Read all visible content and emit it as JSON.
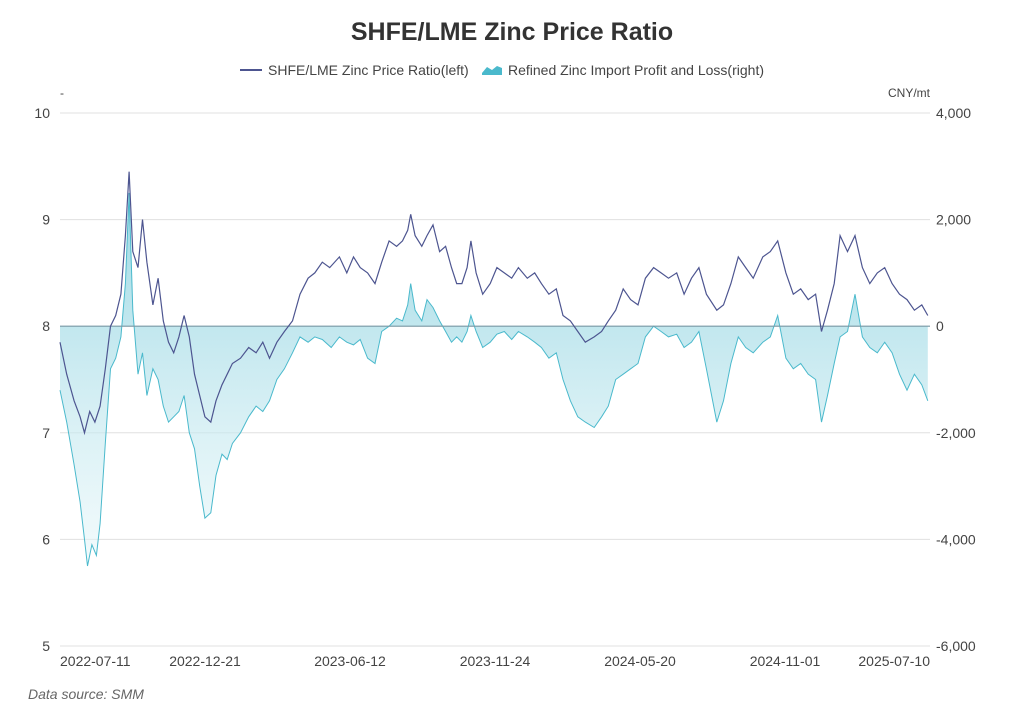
{
  "title": "SHFE/LME Zinc Price Ratio",
  "left_unit": "-",
  "right_unit": "CNY/mt",
  "data_source": "Data source:  SMM",
  "colors": {
    "ratio_line": "#4d5590",
    "profit_line": "#4ab9cc",
    "profit_fill_top": "#8fd3e0",
    "profit_fill_bottom": "#e6f6f9",
    "grid": "#e0e0e0",
    "zero_line": "#7a9aa6"
  },
  "chart_data": {
    "type": "line",
    "title": "SHFE/LME Zinc Price Ratio",
    "x_type": "date",
    "x_range": [
      "2022-06-01",
      "2025-08-15"
    ],
    "x_tick_labels": [
      "2022-07-11",
      "2022-12-21",
      "2023-06-12",
      "2023-11-24",
      "2024-05-20",
      "2024-11-01",
      "2025-07-10"
    ],
    "y_left": {
      "label": "-",
      "range": [
        5,
        10
      ],
      "ticks": [
        "5",
        "6",
        "7",
        "8",
        "9",
        "10"
      ]
    },
    "y_right": {
      "label": "CNY/mt",
      "range": [
        -6000,
        4000
      ],
      "ticks": [
        "-6,000",
        "-4,000",
        "-2,000",
        "0",
        "2,000",
        "4,000"
      ]
    },
    "grid": true,
    "legend_position": "top-center",
    "series": [
      {
        "name": "SHFE/LME Zinc Price Ratio(left)",
        "axis": "left",
        "style": "line",
        "points": [
          [
            "2022-06-01",
            7.85
          ],
          [
            "2022-06-10",
            7.55
          ],
          [
            "2022-06-20",
            7.3
          ],
          [
            "2022-06-28",
            7.15
          ],
          [
            "2022-07-04",
            7.0
          ],
          [
            "2022-07-11",
            7.2
          ],
          [
            "2022-07-18",
            7.1
          ],
          [
            "2022-07-25",
            7.25
          ],
          [
            "2022-08-01",
            7.6
          ],
          [
            "2022-08-08",
            8.0
          ],
          [
            "2022-08-15",
            8.1
          ],
          [
            "2022-08-22",
            8.3
          ],
          [
            "2022-08-28",
            8.85
          ],
          [
            "2022-09-02",
            9.45
          ],
          [
            "2022-09-07",
            8.7
          ],
          [
            "2022-09-14",
            8.55
          ],
          [
            "2022-09-20",
            9.0
          ],
          [
            "2022-09-26",
            8.6
          ],
          [
            "2022-10-04",
            8.2
          ],
          [
            "2022-10-11",
            8.45
          ],
          [
            "2022-10-18",
            8.05
          ],
          [
            "2022-10-25",
            7.85
          ],
          [
            "2022-11-01",
            7.75
          ],
          [
            "2022-11-08",
            7.9
          ],
          [
            "2022-11-15",
            8.1
          ],
          [
            "2022-11-22",
            7.9
          ],
          [
            "2022-11-29",
            7.55
          ],
          [
            "2022-12-06",
            7.35
          ],
          [
            "2022-12-13",
            7.15
          ],
          [
            "2022-12-21",
            7.1
          ],
          [
            "2022-12-28",
            7.3
          ],
          [
            "2023-01-05",
            7.45
          ],
          [
            "2023-01-12",
            7.55
          ],
          [
            "2023-01-19",
            7.65
          ],
          [
            "2023-01-30",
            7.7
          ],
          [
            "2023-02-10",
            7.8
          ],
          [
            "2023-02-20",
            7.75
          ],
          [
            "2023-03-01",
            7.85
          ],
          [
            "2023-03-10",
            7.7
          ],
          [
            "2023-03-20",
            7.85
          ],
          [
            "2023-03-30",
            7.95
          ],
          [
            "2023-04-10",
            8.05
          ],
          [
            "2023-04-20",
            8.3
          ],
          [
            "2023-05-01",
            8.45
          ],
          [
            "2023-05-10",
            8.5
          ],
          [
            "2023-05-20",
            8.6
          ],
          [
            "2023-05-30",
            8.55
          ],
          [
            "2023-06-12",
            8.65
          ],
          [
            "2023-06-22",
            8.5
          ],
          [
            "2023-07-01",
            8.65
          ],
          [
            "2023-07-10",
            8.55
          ],
          [
            "2023-07-20",
            8.5
          ],
          [
            "2023-07-30",
            8.4
          ],
          [
            "2023-08-08",
            8.6
          ],
          [
            "2023-08-18",
            8.8
          ],
          [
            "2023-08-28",
            8.75
          ],
          [
            "2023-09-05",
            8.8
          ],
          [
            "2023-09-12",
            8.9
          ],
          [
            "2023-09-16",
            9.05
          ],
          [
            "2023-09-22",
            8.85
          ],
          [
            "2023-10-01",
            8.75
          ],
          [
            "2023-10-08",
            8.85
          ],
          [
            "2023-10-16",
            8.95
          ],
          [
            "2023-10-25",
            8.7
          ],
          [
            "2023-11-02",
            8.75
          ],
          [
            "2023-11-10",
            8.55
          ],
          [
            "2023-11-17",
            8.4
          ],
          [
            "2023-11-24",
            8.4
          ],
          [
            "2023-12-01",
            8.55
          ],
          [
            "2023-12-06",
            8.8
          ],
          [
            "2023-12-13",
            8.5
          ],
          [
            "2023-12-22",
            8.3
          ],
          [
            "2024-01-01",
            8.4
          ],
          [
            "2024-01-10",
            8.55
          ],
          [
            "2024-01-20",
            8.5
          ],
          [
            "2024-01-30",
            8.45
          ],
          [
            "2024-02-08",
            8.55
          ],
          [
            "2024-02-20",
            8.45
          ],
          [
            "2024-03-01",
            8.5
          ],
          [
            "2024-03-10",
            8.4
          ],
          [
            "2024-03-20",
            8.3
          ],
          [
            "2024-03-30",
            8.35
          ],
          [
            "2024-04-08",
            8.1
          ],
          [
            "2024-04-18",
            8.05
          ],
          [
            "2024-04-28",
            7.95
          ],
          [
            "2024-05-08",
            7.85
          ],
          [
            "2024-05-20",
            7.9
          ],
          [
            "2024-05-30",
            7.95
          ],
          [
            "2024-06-08",
            8.05
          ],
          [
            "2024-06-18",
            8.15
          ],
          [
            "2024-06-28",
            8.35
          ],
          [
            "2024-07-08",
            8.25
          ],
          [
            "2024-07-18",
            8.2
          ],
          [
            "2024-07-28",
            8.45
          ],
          [
            "2024-08-08",
            8.55
          ],
          [
            "2024-08-18",
            8.5
          ],
          [
            "2024-08-28",
            8.45
          ],
          [
            "2024-09-08",
            8.5
          ],
          [
            "2024-09-18",
            8.3
          ],
          [
            "2024-09-28",
            8.45
          ],
          [
            "2024-10-08",
            8.55
          ],
          [
            "2024-10-18",
            8.3
          ],
          [
            "2024-11-01",
            8.15
          ],
          [
            "2024-11-10",
            8.2
          ],
          [
            "2024-11-20",
            8.4
          ],
          [
            "2024-11-30",
            8.65
          ],
          [
            "2024-12-10",
            8.55
          ],
          [
            "2024-12-20",
            8.45
          ],
          [
            "2025-01-02",
            8.65
          ],
          [
            "2025-01-12",
            8.7
          ],
          [
            "2025-01-22",
            8.8
          ],
          [
            "2025-02-02",
            8.5
          ],
          [
            "2025-02-12",
            8.3
          ],
          [
            "2025-02-22",
            8.35
          ],
          [
            "2025-03-04",
            8.25
          ],
          [
            "2025-03-14",
            8.3
          ],
          [
            "2025-03-22",
            7.95
          ],
          [
            "2025-03-30",
            8.15
          ],
          [
            "2025-04-08",
            8.4
          ],
          [
            "2025-04-16",
            8.85
          ],
          [
            "2025-04-26",
            8.7
          ],
          [
            "2025-05-06",
            8.85
          ],
          [
            "2025-05-16",
            8.55
          ],
          [
            "2025-05-26",
            8.4
          ],
          [
            "2025-06-05",
            8.5
          ],
          [
            "2025-06-15",
            8.55
          ],
          [
            "2025-06-25",
            8.4
          ],
          [
            "2025-07-05",
            8.3
          ],
          [
            "2025-07-15",
            8.25
          ],
          [
            "2025-07-25",
            8.15
          ],
          [
            "2025-08-04",
            8.2
          ],
          [
            "2025-08-12",
            8.1
          ]
        ]
      },
      {
        "name": "Refined Zinc Import Profit and Loss(right)",
        "axis": "right",
        "style": "area",
        "points": [
          [
            "2022-06-01",
            -1200
          ],
          [
            "2022-06-10",
            -1800
          ],
          [
            "2022-06-20",
            -2600
          ],
          [
            "2022-06-28",
            -3300
          ],
          [
            "2022-07-04",
            -4000
          ],
          [
            "2022-07-08",
            -4500
          ],
          [
            "2022-07-14",
            -4100
          ],
          [
            "2022-07-20",
            -4300
          ],
          [
            "2022-07-25",
            -3700
          ],
          [
            "2022-08-01",
            -2200
          ],
          [
            "2022-08-08",
            -800
          ],
          [
            "2022-08-15",
            -600
          ],
          [
            "2022-08-22",
            -200
          ],
          [
            "2022-08-28",
            800
          ],
          [
            "2022-09-02",
            2500
          ],
          [
            "2022-09-07",
            300
          ],
          [
            "2022-09-14",
            -900
          ],
          [
            "2022-09-20",
            -500
          ],
          [
            "2022-09-26",
            -1300
          ],
          [
            "2022-10-04",
            -800
          ],
          [
            "2022-10-11",
            -1000
          ],
          [
            "2022-10-18",
            -1500
          ],
          [
            "2022-10-25",
            -1800
          ],
          [
            "2022-11-01",
            -1700
          ],
          [
            "2022-11-08",
            -1600
          ],
          [
            "2022-11-15",
            -1300
          ],
          [
            "2022-11-22",
            -2000
          ],
          [
            "2022-11-29",
            -2300
          ],
          [
            "2022-12-06",
            -3000
          ],
          [
            "2022-12-13",
            -3600
          ],
          [
            "2022-12-21",
            -3500
          ],
          [
            "2022-12-28",
            -2800
          ],
          [
            "2023-01-05",
            -2400
          ],
          [
            "2023-01-12",
            -2500
          ],
          [
            "2023-01-19",
            -2200
          ],
          [
            "2023-01-30",
            -2000
          ],
          [
            "2023-02-10",
            -1700
          ],
          [
            "2023-02-20",
            -1500
          ],
          [
            "2023-03-01",
            -1600
          ],
          [
            "2023-03-10",
            -1400
          ],
          [
            "2023-03-20",
            -1000
          ],
          [
            "2023-03-30",
            -800
          ],
          [
            "2023-04-10",
            -500
          ],
          [
            "2023-04-20",
            -200
          ],
          [
            "2023-05-01",
            -300
          ],
          [
            "2023-05-10",
            -200
          ],
          [
            "2023-05-20",
            -250
          ],
          [
            "2023-06-01",
            -400
          ],
          [
            "2023-06-12",
            -200
          ],
          [
            "2023-06-22",
            -300
          ],
          [
            "2023-07-01",
            -350
          ],
          [
            "2023-07-10",
            -250
          ],
          [
            "2023-07-20",
            -600
          ],
          [
            "2023-07-30",
            -700
          ],
          [
            "2023-08-08",
            -100
          ],
          [
            "2023-08-18",
            0
          ],
          [
            "2023-08-28",
            150
          ],
          [
            "2023-09-05",
            100
          ],
          [
            "2023-09-12",
            400
          ],
          [
            "2023-09-16",
            800
          ],
          [
            "2023-09-22",
            300
          ],
          [
            "2023-10-01",
            100
          ],
          [
            "2023-10-08",
            500
          ],
          [
            "2023-10-16",
            350
          ],
          [
            "2023-10-25",
            100
          ],
          [
            "2023-11-02",
            -100
          ],
          [
            "2023-11-10",
            -300
          ],
          [
            "2023-11-17",
            -200
          ],
          [
            "2023-11-24",
            -300
          ],
          [
            "2023-12-01",
            -100
          ],
          [
            "2023-12-06",
            200
          ],
          [
            "2023-12-13",
            -100
          ],
          [
            "2023-12-22",
            -400
          ],
          [
            "2024-01-01",
            -300
          ],
          [
            "2024-01-10",
            -150
          ],
          [
            "2024-01-20",
            -100
          ],
          [
            "2024-01-30",
            -250
          ],
          [
            "2024-02-08",
            -100
          ],
          [
            "2024-02-20",
            -200
          ],
          [
            "2024-03-01",
            -300
          ],
          [
            "2024-03-10",
            -400
          ],
          [
            "2024-03-20",
            -600
          ],
          [
            "2024-03-30",
            -500
          ],
          [
            "2024-04-08",
            -1000
          ],
          [
            "2024-04-18",
            -1400
          ],
          [
            "2024-04-28",
            -1700
          ],
          [
            "2024-05-08",
            -1800
          ],
          [
            "2024-05-20",
            -1900
          ],
          [
            "2024-05-30",
            -1700
          ],
          [
            "2024-06-08",
            -1500
          ],
          [
            "2024-06-18",
            -1000
          ],
          [
            "2024-06-28",
            -900
          ],
          [
            "2024-07-08",
            -800
          ],
          [
            "2024-07-18",
            -700
          ],
          [
            "2024-07-28",
            -200
          ],
          [
            "2024-08-08",
            0
          ],
          [
            "2024-08-18",
            -100
          ],
          [
            "2024-08-28",
            -200
          ],
          [
            "2024-09-08",
            -150
          ],
          [
            "2024-09-18",
            -400
          ],
          [
            "2024-09-28",
            -300
          ],
          [
            "2024-10-08",
            -100
          ],
          [
            "2024-10-18",
            -800
          ],
          [
            "2024-11-01",
            -1800
          ],
          [
            "2024-11-10",
            -1400
          ],
          [
            "2024-11-20",
            -700
          ],
          [
            "2024-11-30",
            -200
          ],
          [
            "2024-12-10",
            -400
          ],
          [
            "2024-12-20",
            -500
          ],
          [
            "2025-01-02",
            -300
          ],
          [
            "2025-01-12",
            -200
          ],
          [
            "2025-01-22",
            200
          ],
          [
            "2025-02-02",
            -600
          ],
          [
            "2025-02-12",
            -800
          ],
          [
            "2025-02-22",
            -700
          ],
          [
            "2025-03-04",
            -900
          ],
          [
            "2025-03-14",
            -1000
          ],
          [
            "2025-03-22",
            -1800
          ],
          [
            "2025-03-30",
            -1300
          ],
          [
            "2025-04-08",
            -700
          ],
          [
            "2025-04-16",
            -200
          ],
          [
            "2025-04-26",
            -100
          ],
          [
            "2025-05-06",
            600
          ],
          [
            "2025-05-16",
            -200
          ],
          [
            "2025-05-26",
            -400
          ],
          [
            "2025-06-05",
            -500
          ],
          [
            "2025-06-15",
            -300
          ],
          [
            "2025-06-25",
            -500
          ],
          [
            "2025-07-05",
            -900
          ],
          [
            "2025-07-15",
            -1200
          ],
          [
            "2025-07-25",
            -900
          ],
          [
            "2025-08-04",
            -1100
          ],
          [
            "2025-08-12",
            -1400
          ]
        ]
      }
    ]
  }
}
